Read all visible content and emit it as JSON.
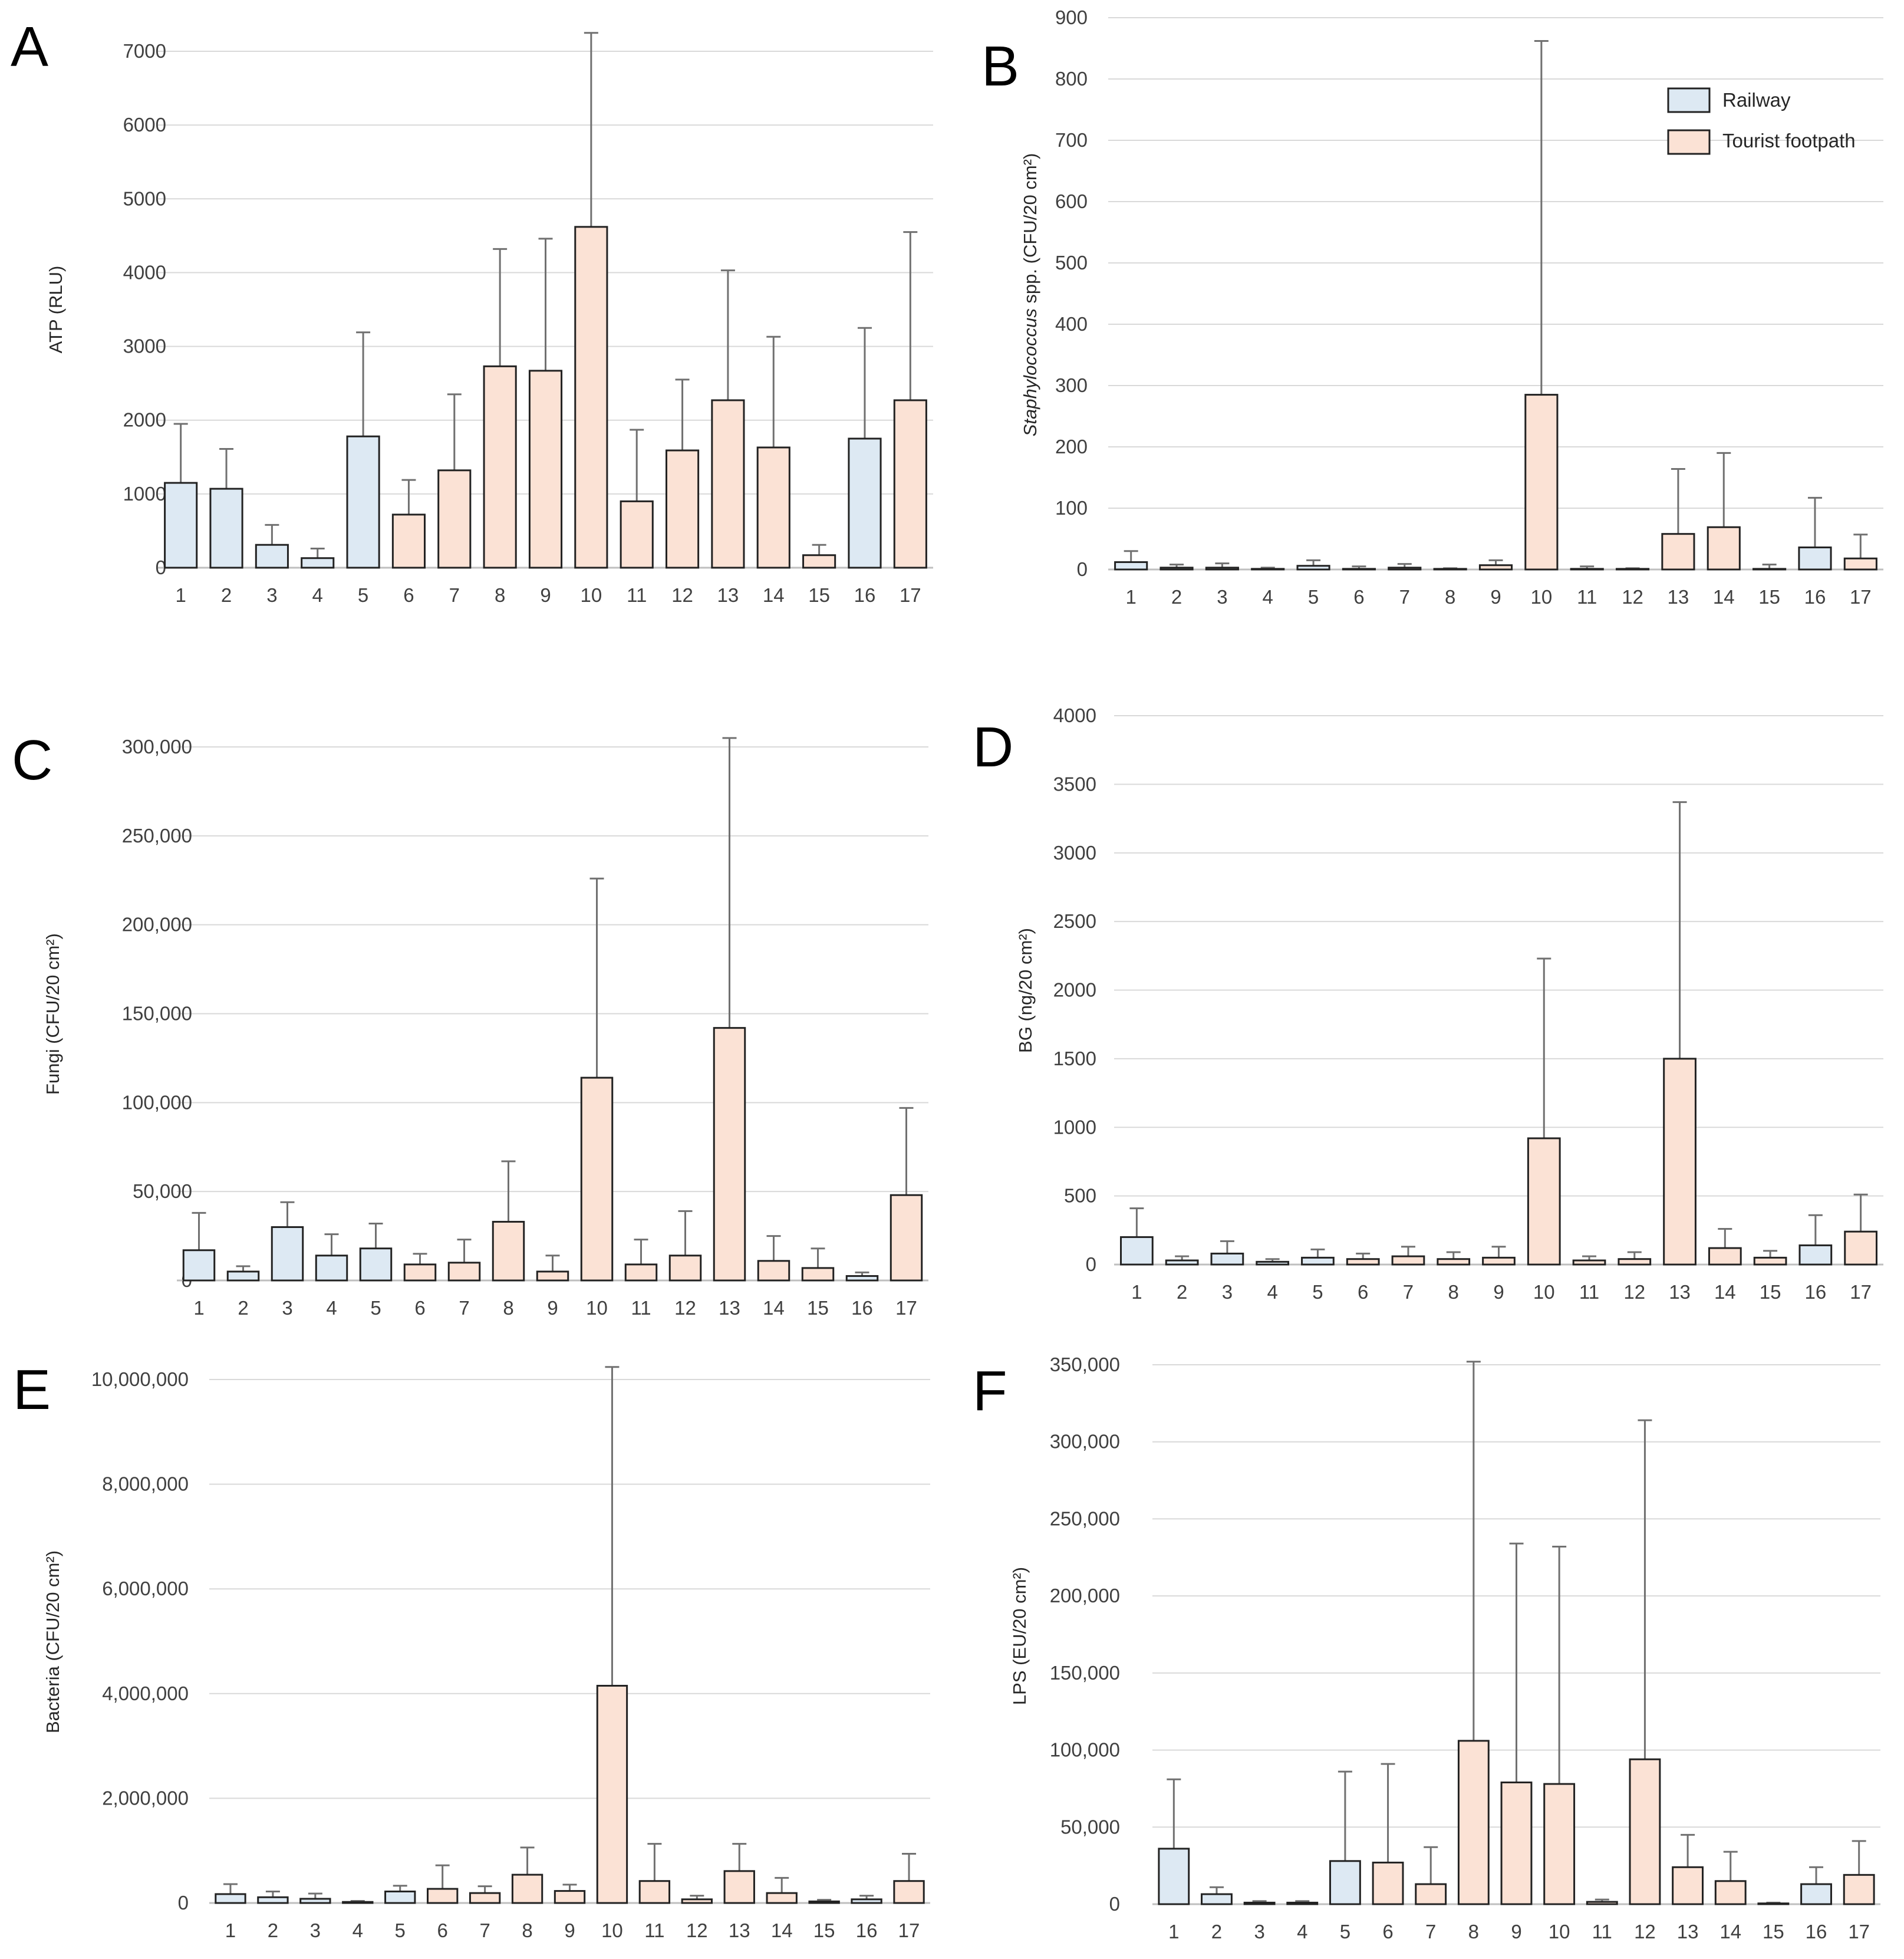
{
  "colors": {
    "railway": "#dde9f3",
    "tourist": "#fbe2d5",
    "bar_edge": "#222222",
    "grid": "#d9d9d9"
  },
  "legend": {
    "railway": "Railway",
    "tourist": "Tourist footpath"
  },
  "chart_data": [
    {
      "panel": "A",
      "type": "bar",
      "ylabel": "ATP (RLU)",
      "ylim": [
        0,
        7000
      ],
      "ticks": [
        0,
        1000,
        2000,
        3000,
        4000,
        5000,
        6000,
        7000
      ],
      "tick_format": "plain",
      "categories": [
        "1",
        "2",
        "3",
        "4",
        "5",
        "6",
        "7",
        "8",
        "9",
        "10",
        "11",
        "12",
        "13",
        "14",
        "15",
        "16",
        "17"
      ],
      "groups": [
        "Railway",
        "Railway",
        "Railway",
        "Railway",
        "Railway",
        "Tourist footpath",
        "Tourist footpath",
        "Tourist footpath",
        "Tourist footpath",
        "Tourist footpath",
        "Tourist footpath",
        "Tourist footpath",
        "Tourist footpath",
        "Tourist footpath",
        "Tourist footpath",
        "Railway",
        "Tourist footpath"
      ],
      "values": [
        1150,
        1070,
        310,
        130,
        1780,
        720,
        1320,
        2730,
        2670,
        4620,
        900,
        1590,
        2270,
        1630,
        170,
        1750,
        2270
      ],
      "error_upper": [
        1950,
        1610,
        580,
        260,
        3190,
        1190,
        2350,
        4320,
        4460,
        7250,
        1870,
        2550,
        4030,
        3130,
        310,
        3250,
        4550
      ]
    },
    {
      "panel": "B",
      "type": "bar",
      "ylabel": "Staphylococcus spp. (CFU/20 cm²)",
      "ylim": [
        0,
        900
      ],
      "ticks": [
        0,
        100,
        200,
        300,
        400,
        500,
        600,
        700,
        800,
        900
      ],
      "tick_format": "plain",
      "legend": true,
      "categories": [
        "1",
        "2",
        "3",
        "4",
        "5",
        "6",
        "7",
        "8",
        "9",
        "10",
        "11",
        "12",
        "13",
        "14",
        "15",
        "16",
        "17"
      ],
      "groups": [
        "Railway",
        "Railway",
        "Railway",
        "Railway",
        "Railway",
        "Tourist footpath",
        "Tourist footpath",
        "Tourist footpath",
        "Tourist footpath",
        "Tourist footpath",
        "Tourist footpath",
        "Tourist footpath",
        "Tourist footpath",
        "Tourist footpath",
        "Tourist footpath",
        "Railway",
        "Tourist footpath"
      ],
      "values": [
        12,
        3,
        3,
        1,
        6,
        1,
        3,
        1,
        7,
        285,
        1,
        1,
        58,
        69,
        1,
        36,
        18
      ],
      "error_upper": [
        30,
        8,
        10,
        3,
        15,
        5,
        9,
        2,
        15,
        862,
        5,
        2,
        164,
        190,
        8,
        117,
        57
      ]
    },
    {
      "panel": "C",
      "type": "bar",
      "ylabel": "Fungi (CFU/20 cm²)",
      "ylim": [
        0,
        300000
      ],
      "ticks": [
        0,
        50000,
        100000,
        150000,
        200000,
        250000,
        300000
      ],
      "tick_format": "comma",
      "categories": [
        "1",
        "2",
        "3",
        "4",
        "5",
        "6",
        "7",
        "8",
        "9",
        "10",
        "11",
        "12",
        "13",
        "14",
        "15",
        "16",
        "17"
      ],
      "groups": [
        "Railway",
        "Railway",
        "Railway",
        "Railway",
        "Railway",
        "Tourist footpath",
        "Tourist footpath",
        "Tourist footpath",
        "Tourist footpath",
        "Tourist footpath",
        "Tourist footpath",
        "Tourist footpath",
        "Tourist footpath",
        "Tourist footpath",
        "Tourist footpath",
        "Railway",
        "Tourist footpath"
      ],
      "values": [
        17000,
        5000,
        30000,
        14000,
        18000,
        9000,
        10000,
        33000,
        5000,
        114000,
        9000,
        14000,
        142000,
        11000,
        7000,
        2500,
        48000
      ],
      "error_upper": [
        38000,
        8000,
        44000,
        26000,
        32000,
        15000,
        23000,
        67000,
        14000,
        226000,
        23000,
        39000,
        305000,
        25000,
        18000,
        4500,
        97000
      ]
    },
    {
      "panel": "D",
      "type": "bar",
      "ylabel": "BG (ng/20 cm²)",
      "ylim": [
        0,
        4000
      ],
      "ticks": [
        0,
        500,
        1000,
        1500,
        2000,
        2500,
        3000,
        3500,
        4000
      ],
      "tick_format": "plain",
      "categories": [
        "1",
        "2",
        "3",
        "4",
        "5",
        "6",
        "7",
        "8",
        "9",
        "10",
        "11",
        "12",
        "13",
        "14",
        "15",
        "16",
        "17"
      ],
      "groups": [
        "Railway",
        "Railway",
        "Railway",
        "Railway",
        "Railway",
        "Tourist footpath",
        "Tourist footpath",
        "Tourist footpath",
        "Tourist footpath",
        "Tourist footpath",
        "Tourist footpath",
        "Tourist footpath",
        "Tourist footpath",
        "Tourist footpath",
        "Tourist footpath",
        "Railway",
        "Tourist footpath"
      ],
      "values": [
        200,
        30,
        80,
        20,
        50,
        40,
        60,
        40,
        50,
        920,
        30,
        40,
        1500,
        120,
        50,
        140,
        240
      ],
      "error_upper": [
        410,
        60,
        170,
        40,
        110,
        80,
        130,
        90,
        130,
        2230,
        60,
        90,
        3370,
        260,
        100,
        360,
        510
      ]
    },
    {
      "panel": "E",
      "type": "bar",
      "ylabel": "Bacteria (CFU/20 cm²)",
      "ylim": [
        0,
        10000000
      ],
      "ticks": [
        0,
        2000000,
        4000000,
        6000000,
        8000000,
        10000000
      ],
      "tick_format": "comma",
      "categories": [
        "1",
        "2",
        "3",
        "4",
        "5",
        "6",
        "7",
        "8",
        "9",
        "10",
        "11",
        "12",
        "13",
        "14",
        "15",
        "16",
        "17"
      ],
      "groups": [
        "Railway",
        "Railway",
        "Railway",
        "Railway",
        "Railway",
        "Tourist footpath",
        "Tourist footpath",
        "Tourist footpath",
        "Tourist footpath",
        "Tourist footpath",
        "Tourist footpath",
        "Tourist footpath",
        "Tourist footpath",
        "Tourist footpath",
        "Tourist footpath",
        "Railway",
        "Tourist footpath"
      ],
      "values": [
        170000,
        110000,
        80000,
        20000,
        220000,
        270000,
        190000,
        540000,
        230000,
        4150000,
        420000,
        70000,
        610000,
        190000,
        30000,
        70000,
        420000
      ],
      "error_upper": [
        360000,
        220000,
        180000,
        40000,
        330000,
        720000,
        320000,
        1060000,
        350000,
        10240000,
        1130000,
        140000,
        1130000,
        480000,
        60000,
        140000,
        940000
      ]
    },
    {
      "panel": "F",
      "type": "bar",
      "ylabel": "LPS (EU/20 cm²)",
      "ylim": [
        0,
        350000
      ],
      "ticks": [
        0,
        50000,
        100000,
        150000,
        200000,
        250000,
        300000,
        350000
      ],
      "tick_format": "comma",
      "categories": [
        "1",
        "2",
        "3",
        "4",
        "5",
        "6",
        "7",
        "8",
        "9",
        "10",
        "11",
        "12",
        "13",
        "14",
        "15",
        "16",
        "17"
      ],
      "groups": [
        "Railway",
        "Railway",
        "Railway",
        "Railway",
        "Railway",
        "Tourist footpath",
        "Tourist footpath",
        "Tourist footpath",
        "Tourist footpath",
        "Tourist footpath",
        "Tourist footpath",
        "Tourist footpath",
        "Tourist footpath",
        "Tourist footpath",
        "Tourist footpath",
        "Railway",
        "Tourist footpath"
      ],
      "values": [
        36000,
        6500,
        1000,
        1000,
        28000,
        27000,
        13000,
        106000,
        79000,
        78000,
        1500,
        94000,
        24000,
        15000,
        500,
        13000,
        19000
      ],
      "error_upper": [
        81000,
        11000,
        2000,
        2000,
        86000,
        91000,
        37000,
        352000,
        234000,
        232000,
        3000,
        314000,
        45000,
        34000,
        1000,
        24000,
        41000
      ]
    }
  ]
}
